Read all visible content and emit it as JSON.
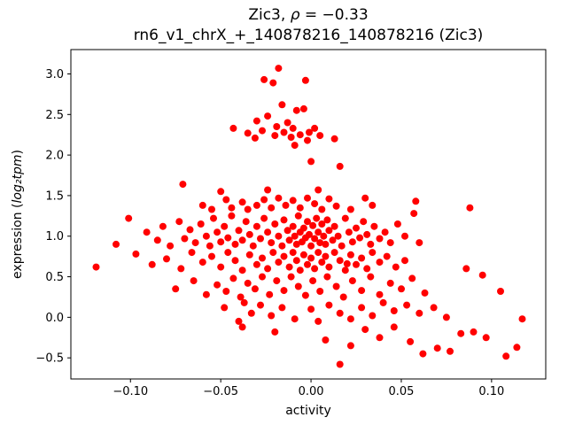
{
  "figure": {
    "title": {
      "prefix": "Zic3, ",
      "rho": "ρ",
      "suffix": " = −0.33"
    },
    "subtitle": "rn6_v1_chrX_+_140878216_140878216 (Zic3)",
    "xlabel": "activity",
    "ylabel": {
      "prefix": "expression (",
      "math": "log₂tpm",
      "suffix": ")"
    }
  },
  "chart_data": {
    "type": "scatter",
    "title": "Zic3, ρ = −0.33",
    "subtitle": "rn6_v1_chrX_+_140878216_140878216 (Zic3)",
    "xlabel": "activity",
    "ylabel": "expression (log2 tpm)",
    "legend": "none",
    "grid": false,
    "marker": {
      "color": "#ff0000",
      "shape": "circle",
      "radius_px": 4
    },
    "xlim": [
      -0.133,
      0.13
    ],
    "ylim": [
      -0.76,
      3.3
    ],
    "xticks": [
      {
        "v": -0.1,
        "label": "−0.10"
      },
      {
        "v": -0.05,
        "label": "−0.05"
      },
      {
        "v": 0.0,
        "label": "0.00"
      },
      {
        "v": 0.05,
        "label": "0.05"
      },
      {
        "v": 0.1,
        "label": "0.10"
      }
    ],
    "yticks": [
      {
        "v": -0.5,
        "label": "−0.5"
      },
      {
        "v": 0.0,
        "label": "0.0"
      },
      {
        "v": 0.5,
        "label": "0.5"
      },
      {
        "v": 1.0,
        "label": "1.0"
      },
      {
        "v": 1.5,
        "label": "1.5"
      },
      {
        "v": 2.0,
        "label": "2.0"
      },
      {
        "v": 2.5,
        "label": "2.5"
      },
      {
        "v": 3.0,
        "label": "3.0"
      }
    ],
    "points": [
      [
        -0.018,
        3.07
      ],
      [
        -0.026,
        2.93
      ],
      [
        -0.021,
        2.89
      ],
      [
        -0.003,
        2.92
      ],
      [
        -0.016,
        2.62
      ],
      [
        -0.004,
        2.57
      ],
      [
        -0.008,
        2.55
      ],
      [
        -0.024,
        2.48
      ],
      [
        -0.03,
        2.42
      ],
      [
        -0.013,
        2.4
      ],
      [
        -0.019,
        2.35
      ],
      [
        -0.043,
        2.33
      ],
      [
        -0.01,
        2.33
      ],
      [
        -0.027,
        2.3
      ],
      [
        -0.035,
        2.27
      ],
      [
        -0.015,
        2.28
      ],
      [
        -0.011,
        2.22
      ],
      [
        -0.006,
        2.25
      ],
      [
        -0.001,
        2.28
      ],
      [
        0.002,
        2.33
      ],
      [
        0.005,
        2.24
      ],
      [
        -0.002,
        2.18
      ],
      [
        -0.009,
        2.12
      ],
      [
        0.013,
        2.2
      ],
      [
        -0.02,
        2.24
      ],
      [
        -0.031,
        2.21
      ],
      [
        0.0,
        1.92
      ],
      [
        0.016,
        1.86
      ],
      [
        -0.071,
        1.64
      ],
      [
        -0.024,
        1.57
      ],
      [
        0.004,
        1.57
      ],
      [
        -0.05,
        1.55
      ],
      [
        -0.06,
        1.38
      ],
      [
        -0.055,
        1.33
      ],
      [
        -0.047,
        1.45
      ],
      [
        -0.044,
        1.35
      ],
      [
        -0.038,
        1.42
      ],
      [
        -0.035,
        1.33
      ],
      [
        -0.03,
        1.38
      ],
      [
        -0.026,
        1.45
      ],
      [
        -0.022,
        1.35
      ],
      [
        -0.018,
        1.47
      ],
      [
        -0.014,
        1.38
      ],
      [
        -0.01,
        1.44
      ],
      [
        -0.006,
        1.35
      ],
      [
        -0.002,
        1.47
      ],
      [
        0.002,
        1.4
      ],
      [
        0.006,
        1.33
      ],
      [
        0.01,
        1.46
      ],
      [
        0.014,
        1.37
      ],
      [
        0.022,
        1.33
      ],
      [
        0.03,
        1.47
      ],
      [
        0.034,
        1.38
      ],
      [
        0.058,
        1.43
      ],
      [
        0.088,
        1.35
      ],
      [
        -0.108,
        0.9
      ],
      [
        -0.101,
        1.22
      ],
      [
        -0.091,
        1.05
      ],
      [
        -0.085,
        0.95
      ],
      [
        -0.082,
        1.12
      ],
      [
        -0.078,
        0.88
      ],
      [
        -0.073,
        1.18
      ],
      [
        -0.07,
        0.97
      ],
      [
        -0.067,
        1.08
      ],
      [
        -0.064,
        0.92
      ],
      [
        -0.061,
        1.15
      ],
      [
        -0.058,
        1.0
      ],
      [
        -0.056,
        0.88
      ],
      [
        -0.054,
        1.22
      ],
      [
        -0.052,
        1.05
      ],
      [
        -0.05,
        0.93
      ],
      [
        -0.048,
        1.12
      ],
      [
        -0.046,
        0.98
      ],
      [
        -0.044,
        1.25
      ],
      [
        -0.042,
        0.9
      ],
      [
        -0.04,
        1.07
      ],
      [
        -0.038,
        0.95
      ],
      [
        -0.036,
        1.18
      ],
      [
        -0.034,
        1.02
      ],
      [
        -0.032,
        0.88
      ],
      [
        -0.03,
        1.12
      ],
      [
        -0.028,
        0.97
      ],
      [
        -0.026,
        1.22
      ],
      [
        -0.024,
        1.05
      ],
      [
        -0.022,
        0.92
      ],
      [
        -0.02,
        1.15
      ],
      [
        -0.018,
        1.0
      ],
      [
        -0.016,
        0.88
      ],
      [
        -0.015,
        1.2
      ],
      [
        -0.013,
        1.07
      ],
      [
        -0.012,
        0.95
      ],
      [
        -0.01,
        1.12
      ],
      [
        -0.009,
        1.0
      ],
      [
        -0.008,
        0.9
      ],
      [
        -0.007,
        1.25
      ],
      [
        -0.006,
        1.05
      ],
      [
        -0.005,
        0.93
      ],
      [
        -0.004,
        1.1
      ],
      [
        -0.003,
        0.98
      ],
      [
        -0.002,
        1.18
      ],
      [
        -0.001,
        1.02
      ],
      [
        0.0,
        0.88
      ],
      [
        0.001,
        1.13
      ],
      [
        0.002,
        0.97
      ],
      [
        0.003,
        1.22
      ],
      [
        0.004,
        1.05
      ],
      [
        0.005,
        0.92
      ],
      [
        0.006,
        1.15
      ],
      [
        0.007,
        1.0
      ],
      [
        0.008,
        0.9
      ],
      [
        0.009,
        1.2
      ],
      [
        0.01,
        1.07
      ],
      [
        0.012,
        0.95
      ],
      [
        0.013,
        1.12
      ],
      [
        0.015,
        1.0
      ],
      [
        0.017,
        0.88
      ],
      [
        0.019,
        1.22
      ],
      [
        0.021,
        1.05
      ],
      [
        0.023,
        0.93
      ],
      [
        0.025,
        1.1
      ],
      [
        0.027,
        0.98
      ],
      [
        0.029,
        1.18
      ],
      [
        0.031,
        1.02
      ],
      [
        0.033,
        0.9
      ],
      [
        0.035,
        1.12
      ],
      [
        0.038,
        0.97
      ],
      [
        0.041,
        1.05
      ],
      [
        0.044,
        0.92
      ],
      [
        0.048,
        1.15
      ],
      [
        0.052,
        1.0
      ],
      [
        0.057,
        1.28
      ],
      [
        0.06,
        0.92
      ],
      [
        -0.119,
        0.62
      ],
      [
        -0.097,
        0.78
      ],
      [
        -0.088,
        0.65
      ],
      [
        -0.08,
        0.72
      ],
      [
        -0.072,
        0.6
      ],
      [
        -0.066,
        0.8
      ],
      [
        -0.06,
        0.68
      ],
      [
        -0.055,
        0.75
      ],
      [
        -0.05,
        0.62
      ],
      [
        -0.046,
        0.8
      ],
      [
        -0.042,
        0.7
      ],
      [
        -0.038,
        0.58
      ],
      [
        -0.034,
        0.77
      ],
      [
        -0.03,
        0.65
      ],
      [
        -0.027,
        0.73
      ],
      [
        -0.024,
        0.6
      ],
      [
        -0.021,
        0.8
      ],
      [
        -0.018,
        0.68
      ],
      [
        -0.015,
        0.75
      ],
      [
        -0.012,
        0.62
      ],
      [
        -0.01,
        0.8
      ],
      [
        -0.008,
        0.7
      ],
      [
        -0.006,
        0.58
      ],
      [
        -0.004,
        0.77
      ],
      [
        -0.002,
        0.65
      ],
      [
        0.0,
        0.73
      ],
      [
        0.002,
        0.6
      ],
      [
        0.004,
        0.8
      ],
      [
        0.006,
        0.68
      ],
      [
        0.008,
        0.75
      ],
      [
        0.01,
        0.62
      ],
      [
        0.013,
        0.8
      ],
      [
        0.016,
        0.7
      ],
      [
        0.019,
        0.58
      ],
      [
        0.022,
        0.77
      ],
      [
        0.025,
        0.65
      ],
      [
        0.028,
        0.73
      ],
      [
        0.031,
        0.6
      ],
      [
        0.034,
        0.8
      ],
      [
        0.038,
        0.68
      ],
      [
        0.042,
        0.75
      ],
      [
        0.047,
        0.62
      ],
      [
        0.052,
        0.7
      ],
      [
        0.086,
        0.6
      ],
      [
        0.02,
        0.66
      ],
      [
        -0.075,
        0.35
      ],
      [
        -0.065,
        0.45
      ],
      [
        -0.058,
        0.28
      ],
      [
        -0.052,
        0.4
      ],
      [
        -0.047,
        0.32
      ],
      [
        -0.043,
        0.48
      ],
      [
        -0.039,
        0.25
      ],
      [
        -0.035,
        0.42
      ],
      [
        -0.031,
        0.35
      ],
      [
        -0.027,
        0.5
      ],
      [
        -0.023,
        0.28
      ],
      [
        -0.019,
        0.45
      ],
      [
        -0.015,
        0.33
      ],
      [
        -0.011,
        0.5
      ],
      [
        -0.007,
        0.38
      ],
      [
        -0.003,
        0.27
      ],
      [
        0.001,
        0.45
      ],
      [
        0.005,
        0.32
      ],
      [
        0.009,
        0.5
      ],
      [
        0.014,
        0.38
      ],
      [
        0.018,
        0.25
      ],
      [
        0.023,
        0.45
      ],
      [
        0.028,
        0.33
      ],
      [
        0.033,
        0.5
      ],
      [
        0.038,
        0.28
      ],
      [
        0.044,
        0.42
      ],
      [
        0.05,
        0.35
      ],
      [
        0.056,
        0.48
      ],
      [
        0.063,
        0.3
      ],
      [
        0.105,
        0.32
      ],
      [
        0.095,
        0.52
      ],
      [
        -0.048,
        0.12
      ],
      [
        -0.04,
        -0.05
      ],
      [
        -0.037,
        0.18
      ],
      [
        -0.033,
        0.05
      ],
      [
        -0.028,
        0.15
      ],
      [
        -0.022,
        0.02
      ],
      [
        -0.016,
        0.12
      ],
      [
        -0.009,
        -0.02
      ],
      [
        0.0,
        0.1
      ],
      [
        0.004,
        -0.05
      ],
      [
        0.01,
        0.15
      ],
      [
        0.016,
        0.05
      ],
      [
        0.022,
        -0.02
      ],
      [
        0.028,
        0.12
      ],
      [
        0.034,
        0.02
      ],
      [
        0.04,
        0.18
      ],
      [
        0.046,
        0.08
      ],
      [
        0.053,
        0.15
      ],
      [
        0.06,
        0.05
      ],
      [
        0.068,
        0.12
      ],
      [
        0.075,
        0.0
      ],
      [
        0.117,
        -0.02
      ],
      [
        -0.038,
        -0.12
      ],
      [
        -0.02,
        -0.18
      ],
      [
        0.008,
        -0.28
      ],
      [
        0.016,
        -0.58
      ],
      [
        0.022,
        -0.35
      ],
      [
        0.03,
        -0.15
      ],
      [
        0.038,
        -0.25
      ],
      [
        0.046,
        -0.12
      ],
      [
        0.055,
        -0.3
      ],
      [
        0.062,
        -0.45
      ],
      [
        0.07,
        -0.38
      ],
      [
        0.077,
        -0.42
      ],
      [
        0.083,
        -0.2
      ],
      [
        0.09,
        -0.18
      ],
      [
        0.097,
        -0.25
      ],
      [
        0.108,
        -0.48
      ],
      [
        0.114,
        -0.37
      ]
    ]
  }
}
